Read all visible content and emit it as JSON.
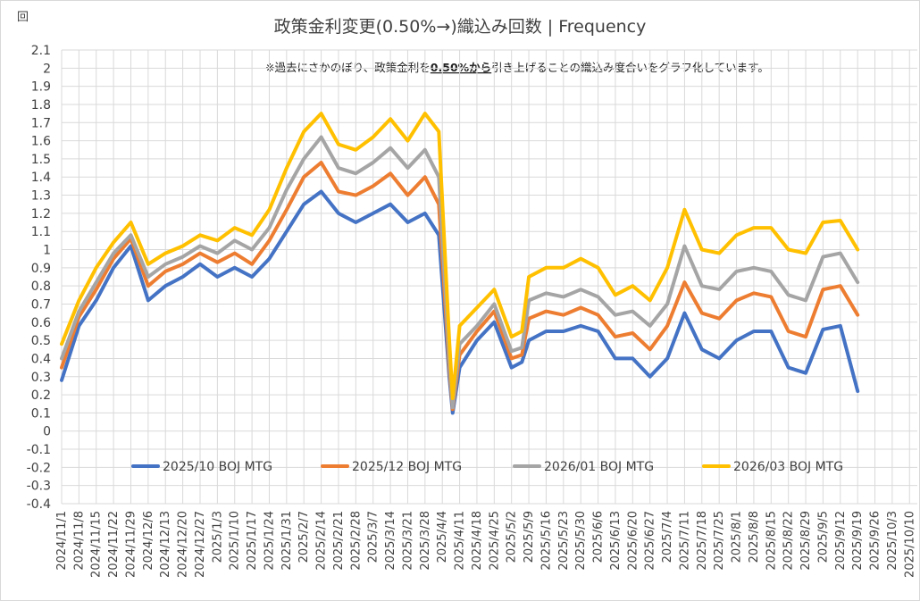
{
  "chart_data": {
    "type": "line",
    "title": "政策金利変更(0.50%→)織込み回数 | Frequency",
    "unit_label": "回",
    "annotation": {
      "prefix": "※過去にさかのぼり、政策金利を",
      "emphasis": "0.50%から",
      "suffix": "引き上げることの織込み度合いをグラフ化しています。"
    },
    "ylim": [
      -0.4,
      2.1
    ],
    "ytick_labels": [
      "2.1",
      "2",
      "1.9",
      "1.8",
      "1.7",
      "1.6",
      "1.5",
      "1.4",
      "1.3",
      "1.2",
      "1.1",
      "1",
      "0.9",
      "0.8",
      "0.7",
      "0.6",
      "0.5",
      "0.4",
      "0.3",
      "0.2",
      "0.1",
      "0",
      "-0.1",
      "-0.2",
      "-0.3",
      "-0.4"
    ],
    "x_labels": [
      "2024/11/1",
      "2024/11/8",
      "2024/11/15",
      "2024/11/22",
      "2024/11/29",
      "2024/12/6",
      "2024/12/13",
      "2024/12/20",
      "2024/12/27",
      "2025/1/3",
      "2025/1/10",
      "2025/1/17",
      "2025/1/24",
      "2025/1/31",
      "2025/2/7",
      "2025/2/14",
      "2025/2/21",
      "2025/2/28",
      "2025/3/7",
      "2025/3/14",
      "2025/3/21",
      "2025/3/28",
      "2025/4/4",
      "2025/4/11",
      "2025/4/18",
      "2025/4/25",
      "2025/5/2",
      "2025/5/9",
      "2025/5/16",
      "2025/5/23",
      "2025/5/30",
      "2025/6/6",
      "2025/6/13",
      "2025/6/20",
      "2025/6/27",
      "2025/7/4",
      "2025/7/11",
      "2025/7/18",
      "2025/7/25",
      "2025/8/1",
      "2025/8/8",
      "2025/8/15",
      "2025/8/22",
      "2025/8/29",
      "2025/9/5",
      "2025/9/12",
      "2025/9/19",
      "2025/9/26",
      "2025/10/3",
      "2025/10/10"
    ],
    "x_keypoints": [
      0,
      1,
      2,
      3,
      4,
      5,
      6,
      7,
      8,
      9,
      10,
      11,
      12,
      13,
      14,
      15,
      16,
      17,
      18,
      19,
      20,
      21,
      21.8,
      22.4,
      22.6,
      23,
      24,
      25,
      26,
      26.6,
      27,
      28,
      29,
      30,
      31,
      32,
      33,
      34,
      35,
      36,
      37,
      38,
      39,
      40,
      41,
      42,
      43,
      44,
      45,
      46,
      47,
      48,
      49
    ],
    "series": [
      {
        "name": "2025/10 BOJ MTG",
        "color": "#4472C4",
        "values": [
          0.28,
          0.58,
          0.72,
          0.9,
          1.02,
          0.72,
          0.8,
          0.85,
          0.92,
          0.85,
          0.9,
          0.85,
          0.95,
          1.1,
          1.25,
          1.32,
          1.2,
          1.15,
          1.2,
          1.25,
          1.15,
          1.2,
          1.08,
          0.3,
          0.1,
          0.35,
          0.5,
          0.6,
          0.35,
          0.38,
          0.5,
          0.55,
          0.55,
          0.58,
          0.55,
          0.4,
          0.4,
          0.3,
          0.4,
          0.65,
          0.45,
          0.4,
          0.5,
          0.55,
          0.55,
          0.35,
          0.32,
          0.56,
          0.58,
          0.22
        ]
      },
      {
        "name": "2025/12 BOJ MTG",
        "color": "#ED7D31",
        "values": [
          0.35,
          0.63,
          0.78,
          0.95,
          1.06,
          0.8,
          0.88,
          0.92,
          0.98,
          0.93,
          0.98,
          0.92,
          1.05,
          1.22,
          1.4,
          1.48,
          1.32,
          1.3,
          1.35,
          1.42,
          1.3,
          1.4,
          1.25,
          0.35,
          0.12,
          0.42,
          0.55,
          0.66,
          0.4,
          0.42,
          0.62,
          0.66,
          0.64,
          0.68,
          0.64,
          0.52,
          0.54,
          0.45,
          0.58,
          0.82,
          0.65,
          0.62,
          0.72,
          0.76,
          0.74,
          0.55,
          0.52,
          0.78,
          0.8,
          0.64
        ]
      },
      {
        "name": "2026/01 BOJ MTG",
        "color": "#A5A5A5",
        "values": [
          0.4,
          0.66,
          0.82,
          0.98,
          1.08,
          0.85,
          0.92,
          0.96,
          1.02,
          0.98,
          1.05,
          1.0,
          1.12,
          1.33,
          1.5,
          1.62,
          1.45,
          1.42,
          1.48,
          1.56,
          1.45,
          1.55,
          1.4,
          0.4,
          0.13,
          0.48,
          0.58,
          0.7,
          0.44,
          0.46,
          0.72,
          0.76,
          0.74,
          0.78,
          0.74,
          0.64,
          0.66,
          0.58,
          0.7,
          1.02,
          0.8,
          0.78,
          0.88,
          0.9,
          0.88,
          0.75,
          0.72,
          0.96,
          0.98,
          0.82
        ]
      },
      {
        "name": "2026/03 BOJ MTG",
        "color": "#FFC000",
        "values": [
          0.48,
          0.72,
          0.9,
          1.04,
          1.15,
          0.92,
          0.98,
          1.02,
          1.08,
          1.05,
          1.12,
          1.08,
          1.22,
          1.45,
          1.65,
          1.75,
          1.58,
          1.55,
          1.62,
          1.72,
          1.6,
          1.75,
          1.65,
          0.5,
          0.18,
          0.58,
          0.68,
          0.78,
          0.52,
          0.55,
          0.85,
          0.9,
          0.9,
          0.95,
          0.9,
          0.75,
          0.8,
          0.72,
          0.9,
          1.22,
          1.0,
          0.98,
          1.08,
          1.12,
          1.12,
          1.0,
          0.98,
          1.15,
          1.16,
          1.0
        ]
      }
    ]
  }
}
